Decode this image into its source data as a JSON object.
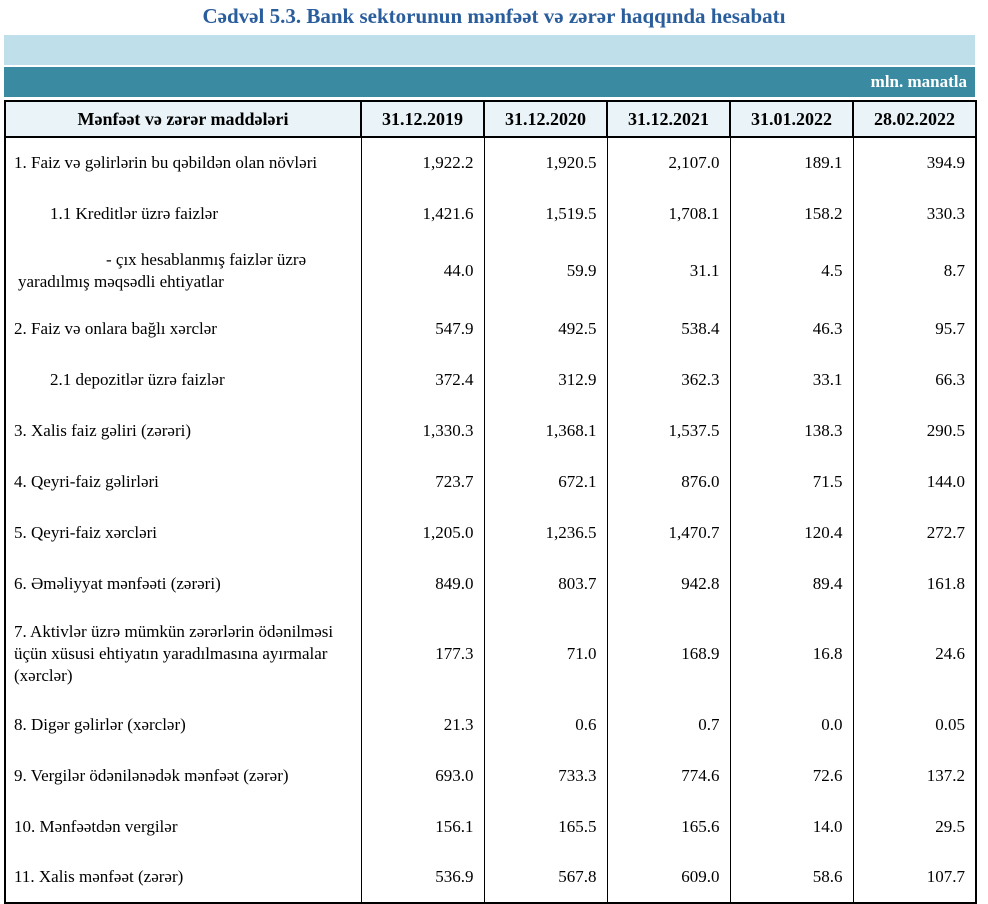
{
  "title": "Cədvəl 5.3. Bank sektorunun mənfəət və zərər haqqında hesabatı",
  "unit_label": "mln. manatla",
  "colors": {
    "title_blue": "#2a5d9c",
    "band_light": "#bfe0ea",
    "band_teal": "#3a8ba1",
    "header_bg": "#e9f3f8",
    "border_black": "#000000",
    "unit_text": "#ffffff"
  },
  "table": {
    "header": {
      "items_label": "Mənfəət və zərər maddələri",
      "dates": [
        "31.12.2019",
        "31.12.2020",
        "31.12.2021",
        "31.01.2022",
        "28.02.2022"
      ]
    },
    "rows": [
      {
        "label": "1. Faiz və gəlirlərin bu qəbildən olan növləri",
        "values": [
          "1,922.2",
          "1,920.5",
          "2,107.0",
          "189.1",
          "394.9"
        ]
      },
      {
        "label": "1.1 Kreditlər üzrə faizlər",
        "values": [
          "1,421.6",
          "1,519.5",
          "1,708.1",
          "158.2",
          "330.3"
        ]
      },
      {
        "label": "-  çıx hesablanmış faizlər üzrə yaradılmış məqsədli ehtiyatlar",
        "values": [
          "44.0",
          "59.9",
          "31.1",
          "4.5",
          "8.7"
        ]
      },
      {
        "label": "2. Faiz və onlara bağlı xərclər",
        "values": [
          "547.9",
          "492.5",
          "538.4",
          "46.3",
          "95.7"
        ]
      },
      {
        "label": "2.1 depozitlər üzrə faizlər",
        "values": [
          "372.4",
          "312.9",
          "362.3",
          "33.1",
          "66.3"
        ]
      },
      {
        "label": "3. Xalis faiz gəliri (zərəri)",
        "values": [
          "1,330.3",
          "1,368.1",
          "1,537.5",
          "138.3",
          "290.5"
        ]
      },
      {
        "label": "4. Qeyri-faiz gəlirləri",
        "values": [
          "723.7",
          "672.1",
          "876.0",
          "71.5",
          "144.0"
        ]
      },
      {
        "label": "5. Qeyri-faiz xərcləri",
        "values": [
          "1,205.0",
          "1,236.5",
          "1,470.7",
          "120.4",
          "272.7"
        ]
      },
      {
        "label": "6. Əməliyyat mənfəəti (zərəri)",
        "values": [
          "849.0",
          "803.7",
          "942.8",
          "89.4",
          "161.8"
        ]
      },
      {
        "label": "7. Aktivlər üzrə mümkün zərərlərin ödənilməsi üçün xüsusi ehtiyatın yaradılmasına ayırmalar (xərclər)",
        "values": [
          "177.3",
          "71.0",
          "168.9",
          "16.8",
          "24.6"
        ]
      },
      {
        "label": "8. Digər gəlirlər (xərclər)",
        "values": [
          "21.3",
          "0.6",
          "0.7",
          "0.0",
          "0.05"
        ]
      },
      {
        "label": "9. Vergilər ödənilənədək mənfəət (zərər)",
        "values": [
          "693.0",
          "733.3",
          "774.6",
          "72.6",
          "137.2"
        ]
      },
      {
        "label": "10. Mənfəətdən vergilər",
        "values": [
          "156.1",
          "165.5",
          "165.6",
          "14.0",
          "29.5"
        ]
      },
      {
        "label": "11. Xalis mənfəət (zərər)",
        "values": [
          "536.9",
          "567.8",
          "609.0",
          "58.6",
          "107.7"
        ]
      }
    ]
  }
}
